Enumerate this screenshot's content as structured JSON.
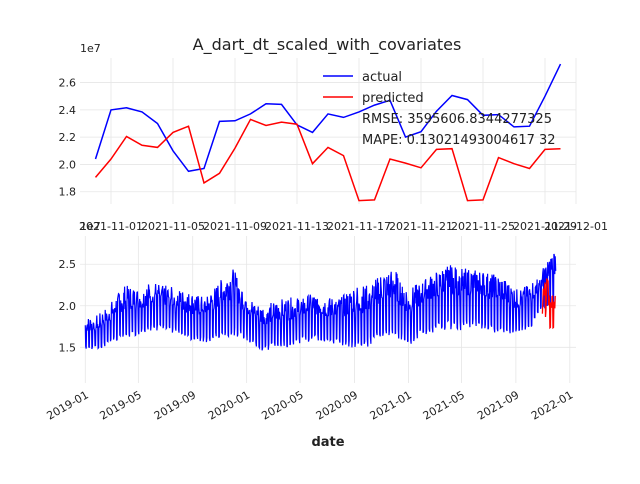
{
  "chart_data": [
    {
      "type": "line",
      "title": "A_dart_dt_scaled_with_covariates",
      "xlabel": "",
      "ylabel": "",
      "y_scale_note": "1e7",
      "xlim": [
        "2021-10-30",
        "2021-12-01"
      ],
      "ylim": [
        17.1,
        27.8
      ],
      "grid": true,
      "legend": {
        "placement": "top-center",
        "entries": [
          "actual",
          "predicted"
        ]
      },
      "metrics": [
        "RMSE: 3595606.8344277325",
        "MAPE: 0.13021493004617 32"
      ],
      "x_ticks": [
        "2021-11-01",
        "2021-11-05",
        "2021-11-09",
        "2021-11-13",
        "2021-11-17",
        "2021-11-21",
        "2021-11-25",
        "2021-11-29",
        "2021-12-01"
      ],
      "y_ticks": [
        "1.8",
        "2.0",
        "2.2",
        "2.4",
        "2.6"
      ],
      "x": [
        "2021-10-31",
        "2021-11-01",
        "2021-11-02",
        "2021-11-03",
        "2021-11-04",
        "2021-11-05",
        "2021-11-06",
        "2021-11-07",
        "2021-11-08",
        "2021-11-09",
        "2021-11-10",
        "2021-11-11",
        "2021-11-12",
        "2021-11-13",
        "2021-11-14",
        "2021-11-15",
        "2021-11-16",
        "2021-11-17",
        "2021-11-18",
        "2021-11-19",
        "2021-11-20",
        "2021-11-21",
        "2021-11-22",
        "2021-11-23",
        "2021-11-24",
        "2021-11-25",
        "2021-11-26",
        "2021-11-27",
        "2021-11-28",
        "2021-11-29",
        "2021-11-30"
      ],
      "series": [
        {
          "name": "actual",
          "color": "#0000ff",
          "values": [
            20.4,
            24.0,
            24.15,
            23.85,
            23.0,
            21.0,
            19.5,
            19.7,
            23.15,
            23.2,
            23.7,
            24.45,
            24.4,
            22.9,
            22.35,
            23.7,
            23.45,
            23.85,
            24.35,
            24.7,
            22.0,
            22.4,
            23.9,
            25.05,
            24.75,
            23.6,
            23.65,
            22.75,
            22.8,
            25.0,
            27.35
          ]
        },
        {
          "name": "predicted",
          "color": "#ff0000",
          "values": [
            19.05,
            20.4,
            22.05,
            21.4,
            21.25,
            22.35,
            22.8,
            18.65,
            19.35,
            21.2,
            23.3,
            22.85,
            23.1,
            22.95,
            20.05,
            21.25,
            20.65,
            17.35,
            17.4,
            20.4,
            20.1,
            19.75,
            21.1,
            21.15,
            17.35,
            17.4,
            20.5,
            20.05,
            19.7,
            21.1,
            21.15
          ]
        }
      ]
    },
    {
      "type": "line",
      "title": "",
      "xlabel": "date",
      "ylabel": "",
      "y_scale_note": "1e7",
      "xlim": [
        "2018-12-20",
        "2022-01-15"
      ],
      "ylim": [
        10.7,
        28.4
      ],
      "grid": true,
      "x_ticks": [
        "2019-01",
        "2019-05",
        "2019-09",
        "2020-01",
        "2020-05",
        "2020-09",
        "2021-01",
        "2021-05",
        "2021-09",
        "2022-01"
      ],
      "y_ticks": [
        "1.5",
        "2.0",
        "2.5"
      ],
      "series": [
        {
          "name": "actual",
          "color": "#0000ff",
          "x": [
            "2019-01-01",
            "2019-02-01",
            "2019-03-01",
            "2019-04-01",
            "2019-05-01",
            "2019-06-01",
            "2019-07-01",
            "2019-08-01",
            "2019-09-01",
            "2019-10-01",
            "2019-11-01",
            "2019-12-01",
            "2020-01-01",
            "2020-02-01",
            "2020-03-01",
            "2020-04-01",
            "2020-05-01",
            "2020-06-01",
            "2020-07-01",
            "2020-08-01",
            "2020-09-01",
            "2020-10-01",
            "2020-11-01",
            "2020-12-01",
            "2021-01-01",
            "2021-02-01",
            "2021-03-01",
            "2021-04-01",
            "2021-05-01",
            "2021-06-01",
            "2021-07-01",
            "2021-08-01",
            "2021-09-01",
            "2021-10-01",
            "2021-11-01",
            "2021-11-30"
          ],
          "values_low": [
            14.8,
            14.5,
            15.5,
            16.0,
            16.5,
            17.0,
            16.8,
            16.5,
            15.8,
            15.5,
            16.0,
            16.5,
            15.8,
            14.5,
            14.8,
            15.0,
            15.5,
            15.8,
            15.6,
            15.2,
            14.8,
            15.0,
            16.0,
            16.2,
            15.0,
            16.5,
            16.8,
            17.2,
            17.0,
            17.5,
            17.0,
            16.5,
            16.8,
            17.0,
            19.5,
            19.5
          ],
          "values_high": [
            18.5,
            19.0,
            20.5,
            22.5,
            22.0,
            23.0,
            22.5,
            22.0,
            21.5,
            21.0,
            23.0,
            24.5,
            21.5,
            20.0,
            20.5,
            21.0,
            21.0,
            21.5,
            21.0,
            21.0,
            22.5,
            22.5,
            24.0,
            24.5,
            22.0,
            23.0,
            24.0,
            25.0,
            24.5,
            24.5,
            24.0,
            23.5,
            22.0,
            22.5,
            24.5,
            27.3
          ]
        },
        {
          "name": "predicted",
          "color": "#ff0000",
          "x": [
            "2021-10-31",
            "2021-11-04",
            "2021-11-08",
            "2021-11-12",
            "2021-11-16",
            "2021-11-20",
            "2021-11-24",
            "2021-11-28",
            "2021-11-30"
          ],
          "values": [
            19.05,
            21.25,
            19.35,
            23.1,
            20.65,
            20.1,
            17.35,
            19.7,
            21.15
          ]
        }
      ]
    }
  ]
}
